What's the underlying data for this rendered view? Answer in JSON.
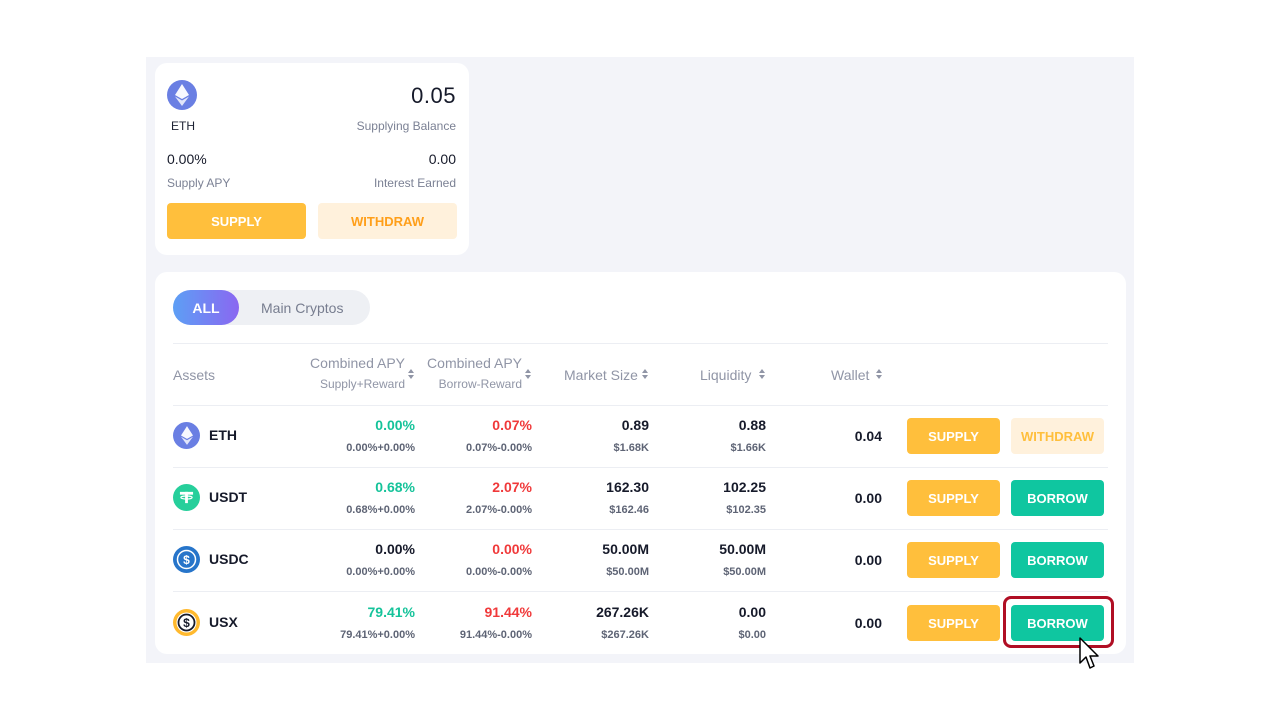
{
  "card": {
    "symbol": "ETH",
    "icon": "ethereum-icon",
    "balance": "0.05",
    "balance_label": "Supplying Balance",
    "supply_apy": "0.00%",
    "supply_apy_label": "Supply APY",
    "interest": "0.00",
    "interest_label": "Interest Earned",
    "supply_btn": "SUPPLY",
    "withdraw_btn": "WITHDRAW"
  },
  "filters": {
    "all": "ALL",
    "main": "Main Cryptos"
  },
  "headers": {
    "assets": "Assets",
    "supply_apy": "Combined APY",
    "supply_apy_sub": "Supply+Reward",
    "borrow_apy": "Combined APY",
    "borrow_apy_sub": "Borrow-Reward",
    "market_size": "Market Size",
    "liquidity": "Liquidity",
    "wallet": "Wallet"
  },
  "rows": [
    {
      "name": "ETH",
      "icon": "ethereum-icon",
      "supply_apy": "0.00%",
      "supply_sub": "0.00%+0.00%",
      "borrow_apy": "0.07%",
      "borrow_sub": "0.07%-0.00%",
      "market": "0.89",
      "market_usd": "$1.68K",
      "liquidity": "0.88",
      "liquidity_usd": "$1.66K",
      "wallet": "0.04",
      "btn1": "SUPPLY",
      "btn2": "WITHDRAW"
    },
    {
      "name": "USDT",
      "icon": "tether-icon",
      "supply_apy": "0.68%",
      "supply_sub": "0.68%+0.00%",
      "borrow_apy": "2.07%",
      "borrow_sub": "2.07%-0.00%",
      "market": "162.30",
      "market_usd": "$162.46",
      "liquidity": "102.25",
      "liquidity_usd": "$102.35",
      "wallet": "0.00",
      "btn1": "SUPPLY",
      "btn2": "BORROW"
    },
    {
      "name": "USDC",
      "icon": "usdc-icon",
      "supply_apy": "0.00%",
      "supply_sub": "0.00%+0.00%",
      "borrow_apy": "0.00%",
      "borrow_sub": "0.00%-0.00%",
      "market": "50.00M",
      "market_usd": "$50.00M",
      "liquidity": "50.00M",
      "liquidity_usd": "$50.00M",
      "wallet": "0.00",
      "btn1": "SUPPLY",
      "btn2": "BORROW"
    },
    {
      "name": "USX",
      "icon": "usx-icon",
      "supply_apy": "79.41%",
      "supply_sub": "79.41%+0.00%",
      "borrow_apy": "91.44%",
      "borrow_sub": "91.44%-0.00%",
      "market": "267.26K",
      "market_usd": "$267.26K",
      "liquidity": "0.00",
      "liquidity_usd": "$0.00",
      "wallet": "0.00",
      "btn1": "SUPPLY",
      "btn2": "BORROW"
    }
  ],
  "colors": {
    "supply": "#ffbf3c",
    "borrow": "#0fc6a0",
    "positive": "#15c39a",
    "negative": "#f0393a",
    "highlight": "#b00e24"
  }
}
